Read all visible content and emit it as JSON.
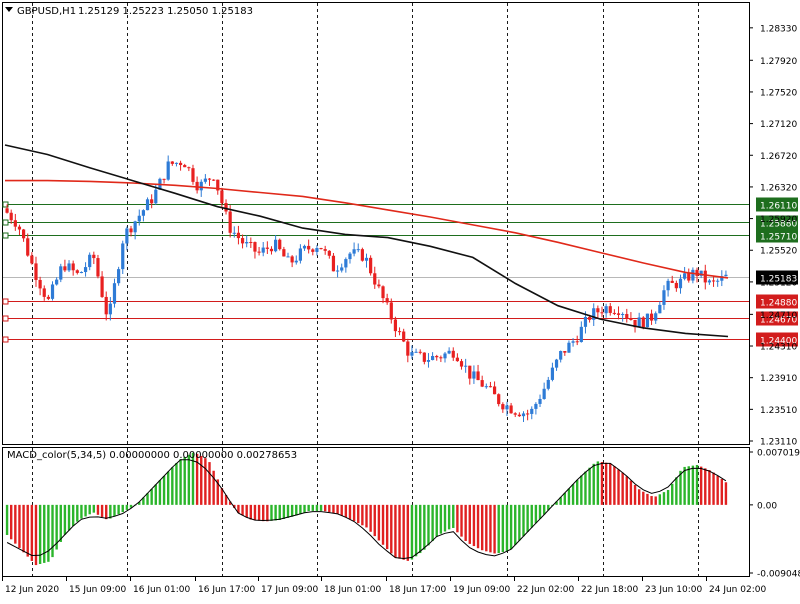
{
  "header": {
    "symbol": "GBPUSD,H1",
    "ohlc": "1.25129 1.25223 1.25050 1.25183"
  },
  "colors": {
    "bull": "#2e7bd6",
    "bear": "#e82020",
    "ma_red": "#e0291a",
    "ma_black": "#111111",
    "green_line": "#1e6e1e",
    "red_line": "#d21c1c",
    "grid": "#1a1a1a",
    "macd_pos": "#2bb52b",
    "macd_neg": "#e02020",
    "signal": "#000000"
  },
  "chart_data": [
    {
      "type": "candlestick",
      "title": "GBPUSD,H1  1.25129 1.25223 1.25050 1.25183",
      "x_labels": [
        "12 Jun 2020",
        "15 Jun 09:00",
        "16 Jun 01:00",
        "16 Jun 17:00",
        "17 Jun 09:00",
        "18 Jun 01:00",
        "18 Jun 17:00",
        "19 Jun 09:00",
        "22 Jun 02:00",
        "22 Jun 18:00",
        "23 Jun 10:00",
        "24 Jun 02:00"
      ],
      "y_ticks": [
        "1.28330",
        "1.27920",
        "1.27520",
        "1.27120",
        "1.26720",
        "1.26320",
        "1.25920",
        "1.25520",
        "1.25120",
        "1.24710",
        "1.24310",
        "1.23910",
        "1.23510",
        "1.23110"
      ],
      "ylim": [
        1.2311,
        1.2853
      ],
      "price_series": [
        1.2605,
        1.2585,
        1.253,
        1.2487,
        1.2535,
        1.252,
        1.2545,
        1.2463,
        1.257,
        1.2595,
        1.262,
        1.266,
        1.2665,
        1.2632,
        1.2648,
        1.2582,
        1.256,
        1.2548,
        1.256,
        1.2535,
        1.2552,
        1.256,
        1.2528,
        1.2548,
        1.2545,
        1.25,
        1.2458,
        1.242,
        1.2415,
        1.2418,
        1.2425,
        1.2395,
        1.238,
        1.236,
        1.235,
        1.2345,
        1.238,
        1.242,
        1.244,
        1.247,
        1.248,
        1.2478,
        1.246,
        1.2465,
        1.2505,
        1.2512,
        1.2525,
        1.2508,
        1.2518
      ],
      "current_price": "1.25183",
      "moving_averages": [
        {
          "color": "red",
          "values": [
            1.264,
            1.264,
            1.2639,
            1.2637,
            1.2634,
            1.263,
            1.2625,
            1.262,
            1.2612,
            1.2603,
            1.2594,
            1.2584,
            1.2574,
            1.2562,
            1.2549,
            1.2536,
            1.2524,
            1.2517
          ]
        },
        {
          "color": "black",
          "values": [
            1.2685,
            1.2673,
            1.2656,
            1.264,
            1.2624,
            1.2607,
            1.2595,
            1.258,
            1.2572,
            1.2568,
            1.2557,
            1.2543,
            1.251,
            1.2482,
            1.2465,
            1.2454,
            1.2447,
            1.2443
          ]
        }
      ],
      "horizontal_levels": [
        {
          "value": "1.26110",
          "color": "green"
        },
        {
          "value": "1.25880",
          "color": "green"
        },
        {
          "value": "1.25710",
          "color": "green"
        },
        {
          "value": "1.24880",
          "color": "red"
        },
        {
          "value": "1.24670",
          "color": "red"
        },
        {
          "value": "1.24400",
          "color": "red"
        }
      ],
      "grid": true
    },
    {
      "type": "bar",
      "title": "MACD_color(5,34,5) 0.00000000 0.00000000 0.00278653",
      "y_ticks": [
        "0.0070195",
        "0.00",
        "-0.009048"
      ],
      "ylim": [
        -0.009048,
        0.0070195
      ],
      "histogram_series": [
        -0.004,
        -0.006,
        -0.008,
        -0.0075,
        -0.004,
        -0.002,
        -0.001,
        -0.002,
        -0.001,
        0.0,
        0.002,
        0.004,
        0.006,
        0.007,
        0.006,
        0.002,
        -0.001,
        -0.002,
        -0.0022,
        -0.002,
        -0.0015,
        -0.0008,
        -0.0008,
        -0.0012,
        -0.002,
        -0.003,
        -0.005,
        -0.007,
        -0.0075,
        -0.006,
        -0.004,
        -0.003,
        -0.005,
        -0.006,
        -0.0065,
        -0.006,
        -0.004,
        -0.002,
        0.0,
        0.002,
        0.004,
        0.0058,
        0.0055,
        0.004,
        0.002,
        0.001,
        0.002,
        0.005,
        0.0053,
        0.0045,
        0.003
      ],
      "signal_series": [
        -0.005,
        -0.006,
        -0.007,
        -0.006,
        -0.004,
        -0.002,
        -0.0015,
        -0.0018,
        -0.0012,
        0.0,
        0.002,
        0.004,
        0.006,
        0.006,
        0.0045,
        0.002,
        -0.001,
        -0.002,
        -0.0021,
        -0.0019,
        -0.0014,
        -0.0009,
        -0.0009,
        -0.0012,
        -0.002,
        -0.0035,
        -0.0055,
        -0.007,
        -0.0072,
        -0.0058,
        -0.004,
        -0.0035,
        -0.0055,
        -0.0065,
        -0.0068,
        -0.006,
        -0.004,
        -0.002,
        0.0,
        0.002,
        0.004,
        0.0055,
        0.0055,
        0.004,
        0.0022,
        0.0014,
        0.0024,
        0.0045,
        0.005,
        0.0044,
        0.0032
      ],
      "grid": true
    }
  ]
}
